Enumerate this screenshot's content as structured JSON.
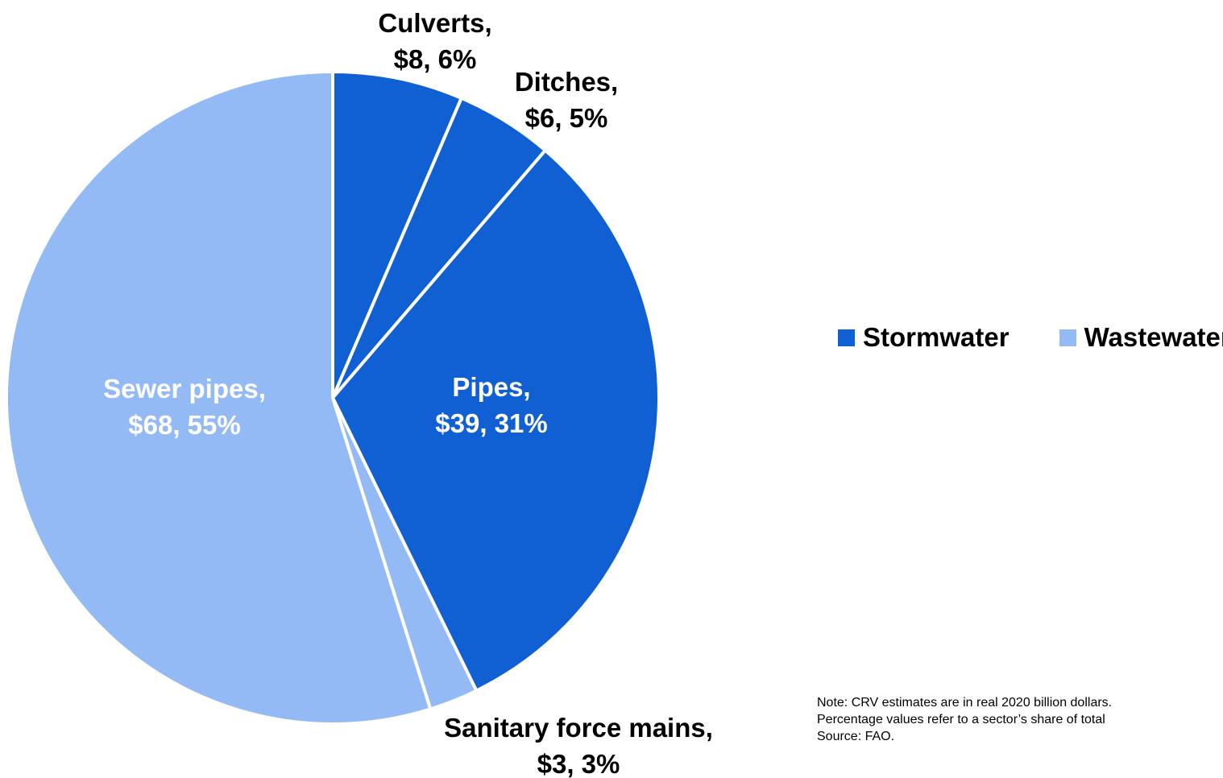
{
  "chart_data": {
    "type": "pie",
    "start_angle_deg": 0,
    "direction": "clockwise",
    "slices": [
      {
        "name": "Culverts",
        "label_line1": "Culverts,",
        "label_line2": "$8, 6%",
        "value": 8,
        "percent": 6,
        "group": "Stormwater"
      },
      {
        "name": "Ditches",
        "label_line1": "Ditches,",
        "label_line2": "$6, 5%",
        "value": 6,
        "percent": 5,
        "group": "Stormwater"
      },
      {
        "name": "Pipes",
        "label_line1": "Pipes,",
        "label_line2": "$39, 31%",
        "value": 39,
        "percent": 31,
        "group": "Stormwater"
      },
      {
        "name": "Sanitary force mains",
        "label_line1": "Sanitary force mains,",
        "label_line2": "$3, 3%",
        "value": 3,
        "percent": 3,
        "group": "Wastewater"
      },
      {
        "name": "Sewer pipes",
        "label_line1": "Sewer pipes,",
        "label_line2": "$68, 55%",
        "value": 68,
        "percent": 55,
        "group": "Wastewater"
      }
    ],
    "legend": [
      {
        "name": "Stormwater",
        "color": "#1060D4"
      },
      {
        "name": "Wastewater",
        "color": "#93BAF5"
      }
    ],
    "legend_position": "right",
    "note_lines": [
      "Note: CRV estimates are in real 2020 billion dollars.",
      "Percentage values refer to a sector’s share of total",
      "Source: FAO."
    ]
  }
}
